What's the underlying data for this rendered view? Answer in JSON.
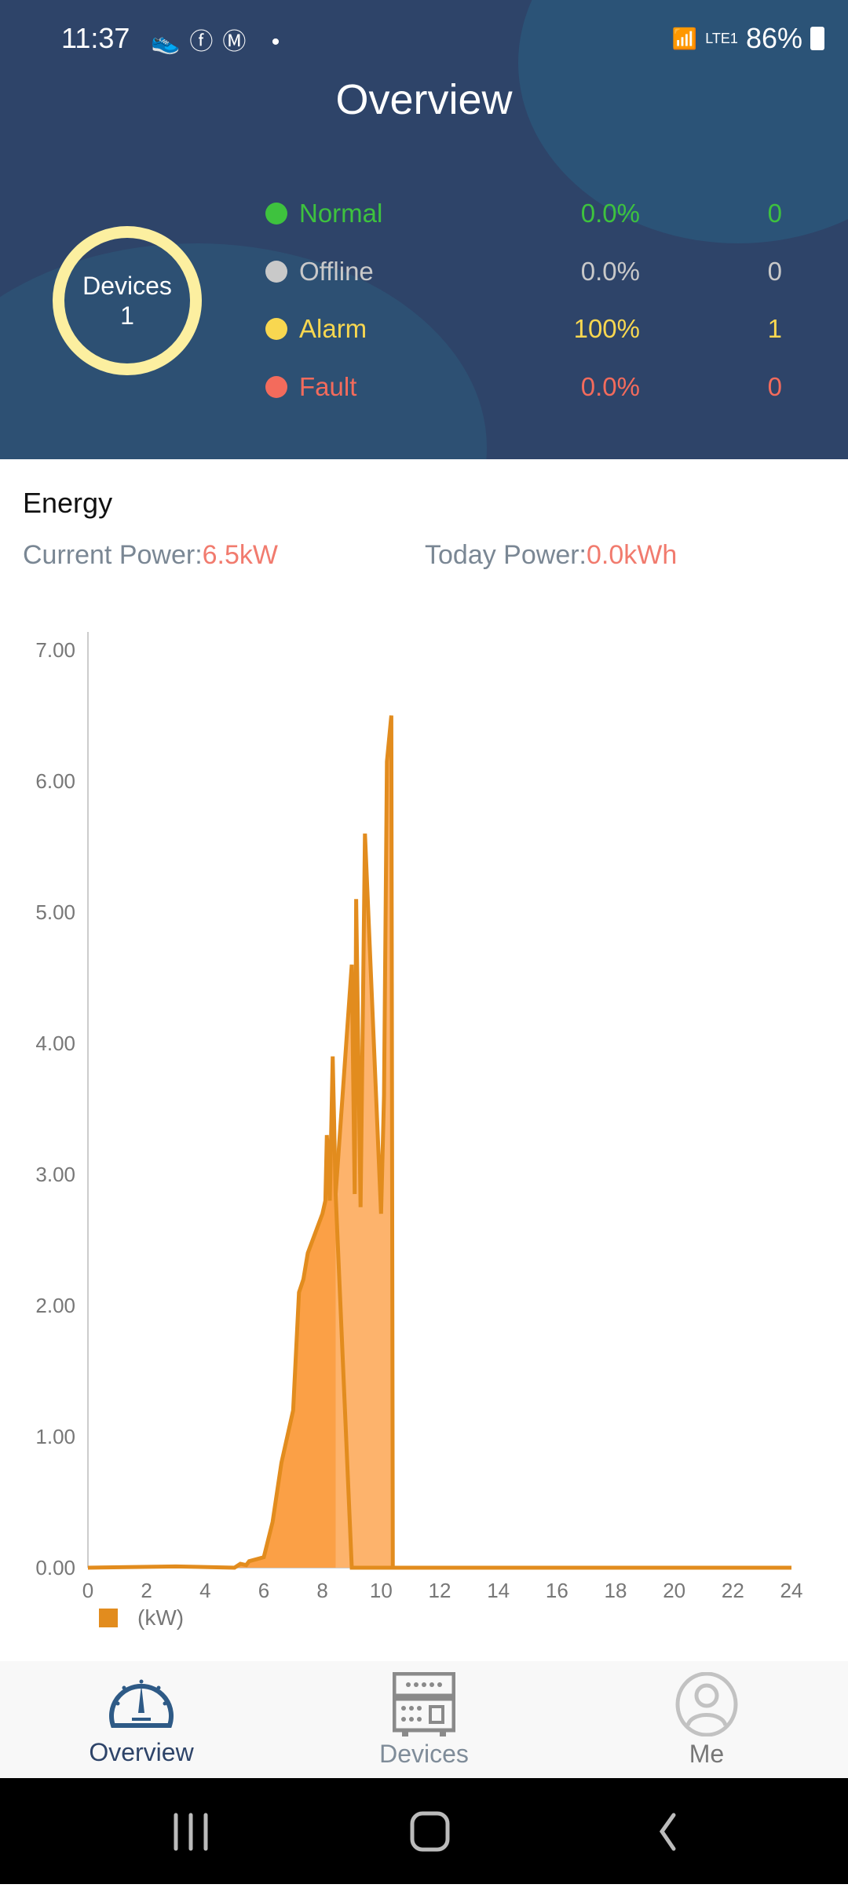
{
  "status_bar": {
    "time": "11:37",
    "battery": "86%",
    "network": "LTE1"
  },
  "header": {
    "title": "Overview"
  },
  "devices": {
    "label": "Devices",
    "count": "1"
  },
  "status_rows": [
    {
      "label": "Normal",
      "percent": "0.0%",
      "count": "0",
      "color": "#3EC23E"
    },
    {
      "label": "Offline",
      "percent": "0.0%",
      "count": "0",
      "color": "#C9C9C9"
    },
    {
      "label": "Alarm",
      "percent": "100%",
      "count": "1",
      "color": "#F8D750"
    },
    {
      "label": "Fault",
      "percent": "0.0%",
      "count": "0",
      "color": "#F36B5C"
    }
  ],
  "energy": {
    "title": "Energy",
    "current_label": "Current Power:",
    "current_value": "6.5kW",
    "today_label": "Today Power:",
    "today_value": "0.0kWh"
  },
  "chart_data": {
    "type": "area",
    "xlim": [
      0,
      24
    ],
    "ylim": [
      0,
      7
    ],
    "x_ticks": [
      "0",
      "2",
      "4",
      "6",
      "8",
      "10",
      "12",
      "14",
      "16",
      "18",
      "20",
      "22",
      "24"
    ],
    "y_ticks": [
      "0.00",
      "1.00",
      "2.00",
      "3.00",
      "4.00",
      "5.00",
      "6.00",
      "7.00"
    ],
    "legend": "(kW)",
    "legend_position": "bottom-left",
    "color": "#E28C1E",
    "grid": false,
    "series": [
      {
        "points": [
          [
            0,
            0
          ],
          [
            3,
            0.01
          ],
          [
            5,
            0
          ],
          [
            5.2,
            0.03
          ],
          [
            5.4,
            0.02
          ],
          [
            5.5,
            0.05
          ],
          [
            6,
            0.08
          ],
          [
            6.3,
            0.35
          ],
          [
            6.6,
            0.8
          ],
          [
            7,
            1.2
          ],
          [
            7.2,
            2.1
          ],
          [
            7.35,
            2.2
          ],
          [
            7.5,
            2.4
          ],
          [
            8,
            2.7
          ],
          [
            8.1,
            2.8
          ],
          [
            8.15,
            3.3
          ],
          [
            8.25,
            2.8
          ],
          [
            8.35,
            3.9
          ],
          [
            8.45,
            2.85
          ],
          [
            9.0,
            0
          ],
          [
            24,
            0
          ]
        ]
      },
      {
        "points": [
          [
            8.45,
            2.85
          ],
          [
            9.0,
            4.6
          ],
          [
            9.1,
            2.85
          ],
          [
            9.15,
            5.1
          ],
          [
            9.3,
            2.75
          ],
          [
            9.45,
            5.6
          ],
          [
            10.0,
            2.7
          ],
          [
            10.1,
            3.6
          ],
          [
            10.2,
            6.15
          ],
          [
            10.35,
            6.5
          ],
          [
            10.4,
            0
          ]
        ]
      }
    ]
  },
  "bottom_nav": [
    {
      "label": "Overview",
      "active": true
    },
    {
      "label": "Devices"
    },
    {
      "label": "Me"
    }
  ]
}
